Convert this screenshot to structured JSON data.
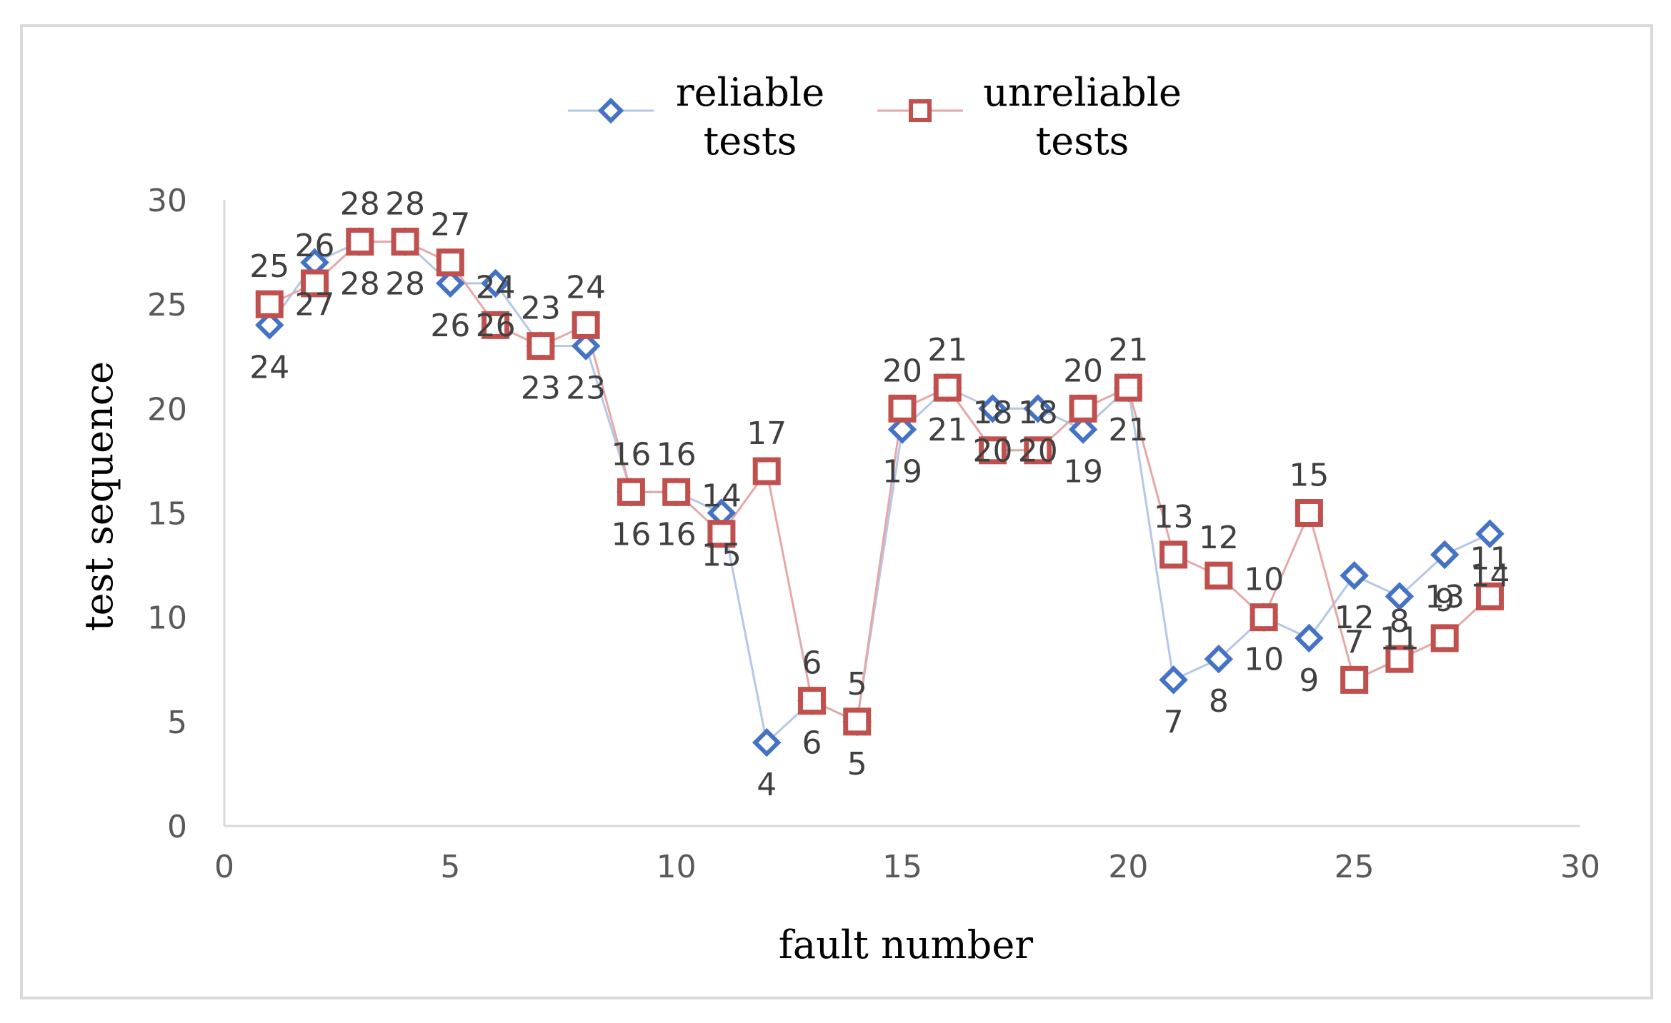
{
  "chart_data": {
    "type": "scatter",
    "title": "",
    "xlabel": "fault number",
    "ylabel": "test sequence",
    "xlim": [
      0,
      30
    ],
    "ylim": [
      0,
      30
    ],
    "xticks": [
      "0",
      "5",
      "10",
      "15",
      "20",
      "25",
      "30"
    ],
    "yticks": [
      "0",
      "5",
      "10",
      "15",
      "20",
      "25",
      "30"
    ],
    "grid": false,
    "legend_position": "top-center",
    "x": [
      1,
      2,
      3,
      4,
      5,
      6,
      7,
      8,
      9,
      10,
      11,
      12,
      13,
      14,
      15,
      16,
      17,
      18,
      19,
      20,
      21,
      22,
      23,
      24,
      25,
      26,
      27,
      28
    ],
    "series": [
      {
        "name": "reliable tests",
        "legend_line1": "reliable",
        "legend_line2": "tests",
        "marker": "diamond",
        "color": "#4472C4",
        "line_color": "#B4C7E7",
        "values": [
          24,
          27,
          28,
          28,
          26,
          26,
          23,
          23,
          16,
          16,
          15,
          4,
          6,
          5,
          19,
          21,
          20,
          20,
          19,
          21,
          7,
          8,
          10,
          9,
          12,
          11,
          13,
          14
        ],
        "labels": [
          "24",
          "27",
          "28",
          "28",
          "26",
          "26",
          "23",
          "23",
          "16",
          "16",
          "15",
          "4",
          "6",
          "5",
          "19",
          "21",
          "20",
          "20",
          "19",
          "21",
          "7",
          "8",
          "10",
          "9",
          "12",
          "11",
          "13",
          "14"
        ]
      },
      {
        "name": "unreliable tests",
        "legend_line1": "unreliable",
        "legend_line2": "tests",
        "marker": "square",
        "color": "#C0504D",
        "line_color": "#E6A7A6",
        "values": [
          25,
          26,
          28,
          28,
          27,
          24,
          23,
          24,
          16,
          16,
          14,
          17,
          6,
          5,
          20,
          21,
          18,
          18,
          20,
          21,
          13,
          12,
          10,
          15,
          7,
          8,
          9,
          11
        ],
        "labels": [
          "25",
          "26",
          "28",
          "28",
          "27",
          "24",
          "23",
          "24",
          "16",
          "16",
          "14",
          "17",
          "6",
          "5",
          "20",
          "21",
          "18",
          "18",
          "20",
          "21",
          "13",
          "12",
          "10",
          "15",
          "7",
          "8",
          "9",
          "11"
        ]
      }
    ]
  }
}
